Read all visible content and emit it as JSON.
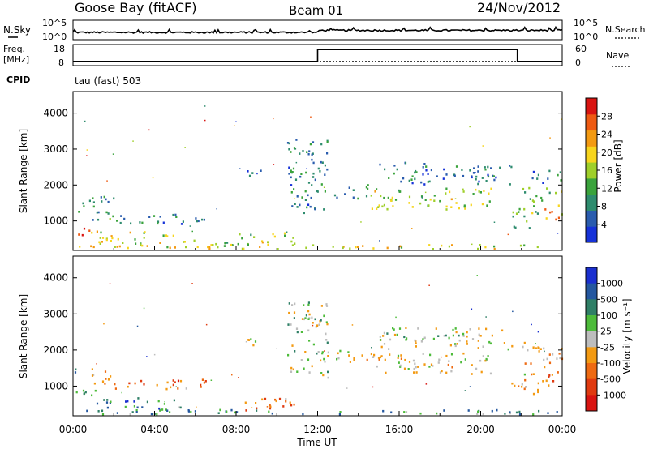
{
  "header": {
    "station": "Goose Bay (fitACF)",
    "beam": "Beam 01",
    "date": "24/Nov/2012"
  },
  "noise_panel": {
    "left_label": "N.Sky",
    "right_label": "N.Search",
    "left_ticks": [
      "10^5",
      "10^0"
    ],
    "right_ticks": [
      "10^5",
      "10^0"
    ]
  },
  "freq_panel": {
    "left_label_1": "Freq.",
    "left_label_2": "[MHz]",
    "left_ticks": [
      "18",
      "8"
    ],
    "right_label": "Nave",
    "right_ticks": [
      "60",
      "0"
    ],
    "cpid_label": "CPID",
    "cpid_value": "tau (fast) 503",
    "freq_steps": [
      {
        "t": 0,
        "f": 10
      },
      {
        "t": 12.0,
        "f": 10
      },
      {
        "t": 12.0,
        "f": 15.6
      },
      {
        "t": 21.8,
        "f": 15.6
      },
      {
        "t": 21.8,
        "f": 10
      },
      {
        "t": 24,
        "f": 10
      }
    ],
    "nave_level": 0.5
  },
  "chart_data": [
    {
      "type": "heatmap",
      "name": "power",
      "ylabel": "Slant Range [km]",
      "ylim": [
        180,
        4600
      ],
      "yticks": [
        1000,
        2000,
        3000,
        4000
      ],
      "xlim": [
        0,
        24
      ],
      "colorbar": {
        "label": "Power [dB]",
        "range": [
          0,
          32
        ],
        "ticks": [
          "4",
          "8",
          "12",
          "16",
          "20",
          "24",
          "28"
        ],
        "colors": [
          "#1632d8",
          "#2a5cae",
          "#2e8c6e",
          "#3aa33c",
          "#9fcf2a",
          "#f7d51d",
          "#f39a12",
          "#ee5a12",
          "#d91411"
        ]
      },
      "regions": [
        {
          "t0": 0.0,
          "t1": 1.2,
          "r0": 500,
          "r1": 800,
          "level": 0.78
        },
        {
          "t0": 0.0,
          "t1": 0.5,
          "r0": 1200,
          "r1": 1500,
          "level": 0.35
        },
        {
          "t0": 0.6,
          "t1": 2.0,
          "r0": 950,
          "r1": 1700,
          "level": 0.3
        },
        {
          "t0": 1.2,
          "t1": 5.0,
          "r0": 250,
          "r1": 700,
          "level": 0.55
        },
        {
          "t0": 2.0,
          "t1": 6.5,
          "r0": 900,
          "r1": 1200,
          "level": 0.28
        },
        {
          "t0": 5.0,
          "t1": 8.0,
          "r0": 250,
          "r1": 450,
          "level": 0.42
        },
        {
          "t0": 8.0,
          "t1": 11.0,
          "r0": 300,
          "r1": 650,
          "level": 0.5
        },
        {
          "t0": 8.5,
          "t1": 9.2,
          "r0": 2100,
          "r1": 2450,
          "level": 0.2
        },
        {
          "t0": 10.5,
          "t1": 12.5,
          "r0": 1200,
          "r1": 3300,
          "level": 0.25
        },
        {
          "t0": 12.8,
          "t1": 14.5,
          "r0": 1600,
          "r1": 2000,
          "level": 0.35
        },
        {
          "t0": 14.5,
          "t1": 20.5,
          "r0": 1300,
          "r1": 1900,
          "level": 0.5
        },
        {
          "t0": 15.0,
          "t1": 21.5,
          "r0": 2000,
          "r1": 2600,
          "level": 0.22
        },
        {
          "t0": 21.5,
          "t1": 22.8,
          "r0": 700,
          "r1": 1400,
          "level": 0.4
        },
        {
          "t0": 22.0,
          "t1": 24.0,
          "r0": 1500,
          "r1": 1900,
          "level": 0.4
        },
        {
          "t0": 23.0,
          "t1": 24.0,
          "r0": 1000,
          "r1": 1500,
          "level": 0.72
        },
        {
          "t0": 22.5,
          "t1": 24.0,
          "r0": 2000,
          "r1": 2400,
          "level": 0.25
        },
        {
          "t0": 0.0,
          "t1": 24.0,
          "r0": 200,
          "r1": 320,
          "level": 0.6
        }
      ]
    },
    {
      "type": "heatmap",
      "name": "velocity",
      "ylabel": "Slant Range [km]",
      "ylim": [
        180,
        4600
      ],
      "yticks": [
        1000,
        2000,
        3000,
        4000
      ],
      "xlim": [
        0,
        24
      ],
      "xticks": [
        "00:00",
        "04:00",
        "08:00",
        "12:00",
        "16:00",
        "20:00",
        "00:00"
      ],
      "xlabel": "Time UT",
      "colorbar": {
        "label": "Velocity [m s⁻¹]",
        "ticks": [
          "1000",
          "500",
          "100",
          "25",
          "-25",
          "-100",
          "-500",
          "-1000"
        ],
        "colors": [
          "#1a2fcf",
          "#24579f",
          "#2f7f66",
          "#4dbb3a",
          "#bdbdbd",
          "#f39a12",
          "#ee6a12",
          "#e03a10",
          "#d91411"
        ]
      },
      "regions": [
        {
          "t0": 0.0,
          "t1": 1.2,
          "r0": 500,
          "r1": 900,
          "level": 0.3
        },
        {
          "t0": 0.0,
          "t1": 0.4,
          "r0": 1200,
          "r1": 1500,
          "level": 0.1
        },
        {
          "t0": 0.8,
          "t1": 2.0,
          "r0": 1000,
          "r1": 1500,
          "level": 0.7
        },
        {
          "t0": 1.2,
          "t1": 5.0,
          "r0": 300,
          "r1": 650,
          "level": 0.25
        },
        {
          "t0": 2.0,
          "t1": 6.5,
          "r0": 900,
          "r1": 1200,
          "level": 0.72
        },
        {
          "t0": 5.0,
          "t1": 8.0,
          "r0": 250,
          "r1": 450,
          "level": 0.3
        },
        {
          "t0": 8.0,
          "t1": 11.0,
          "r0": 300,
          "r1": 650,
          "level": 0.72
        },
        {
          "t0": 8.5,
          "t1": 9.3,
          "r0": 2100,
          "r1": 2450,
          "level": 0.5
        },
        {
          "t0": 10.5,
          "t1": 12.5,
          "r0": 1200,
          "r1": 3300,
          "level": 0.45
        },
        {
          "t0": 12.8,
          "t1": 14.5,
          "r0": 1600,
          "r1": 2000,
          "level": 0.5
        },
        {
          "t0": 14.5,
          "t1": 20.5,
          "r0": 1300,
          "r1": 1900,
          "level": 0.52
        },
        {
          "t0": 15.0,
          "t1": 21.5,
          "r0": 2000,
          "r1": 2600,
          "level": 0.48
        },
        {
          "t0": 21.5,
          "t1": 22.8,
          "r0": 700,
          "r1": 1400,
          "level": 0.6
        },
        {
          "t0": 22.0,
          "t1": 24.0,
          "r0": 1500,
          "r1": 2200,
          "level": 0.62
        },
        {
          "t0": 23.0,
          "t1": 24.0,
          "r0": 900,
          "r1": 1400,
          "level": 0.7
        },
        {
          "t0": 0.0,
          "t1": 24.0,
          "r0": 200,
          "r1": 320,
          "level": 0.3
        }
      ]
    }
  ]
}
